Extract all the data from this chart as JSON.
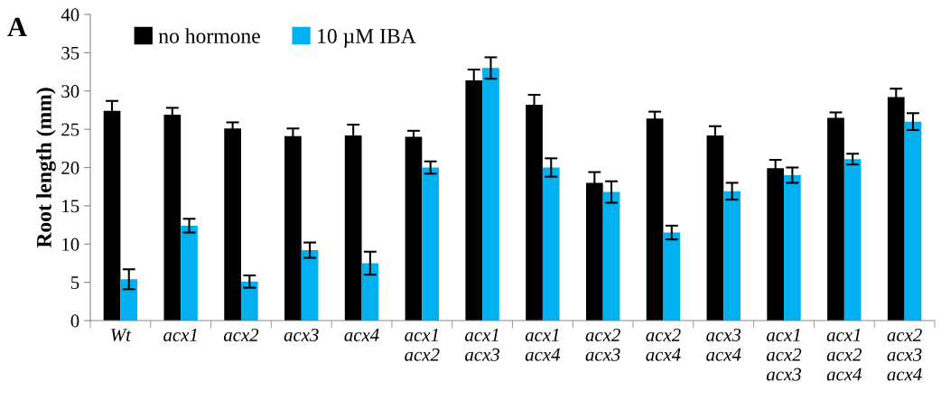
{
  "chart_data": {
    "type": "bar",
    "ylabel": "Root length (mm)",
    "annotations": [
      "A"
    ],
    "categories": [
      "Wt",
      "acx1",
      "acx2",
      "acx3",
      "acx4",
      "acx1\nacx2",
      "acx1\nacx3",
      "acx1\nacx4",
      "acx2\nacx3",
      "acx2\nacx4",
      "acx3\nacx4",
      "acx1\nacx2\nacx3",
      "acx1\nacx2\nacx4",
      "acx2\nacx3\nacx4"
    ],
    "series": [
      {
        "name": "no hormone",
        "color": "#000000",
        "values": [
          27.4,
          26.9,
          25.1,
          24.1,
          24.2,
          24.0,
          31.4,
          28.2,
          18.0,
          26.4,
          24.2,
          19.9,
          26.5,
          29.2
        ],
        "errors": [
          1.3,
          0.9,
          0.8,
          1.0,
          1.4,
          0.8,
          1.4,
          1.3,
          1.4,
          0.9,
          1.2,
          1.1,
          0.7,
          1.1
        ]
      },
      {
        "name": "10 µM IBA",
        "color": "#00b0f0",
        "values": [
          5.4,
          12.4,
          5.1,
          9.2,
          7.5,
          20.0,
          33.0,
          20.0,
          16.8,
          11.5,
          16.9,
          19.0,
          21.1,
          26.0
        ],
        "errors": [
          1.3,
          0.9,
          0.8,
          1.0,
          1.5,
          0.8,
          1.4,
          1.2,
          1.4,
          0.9,
          1.1,
          1.0,
          0.7,
          1.1
        ]
      }
    ],
    "ylim": [
      0,
      40
    ],
    "yticks": [
      0,
      5,
      10,
      15,
      20,
      25,
      30,
      35,
      40
    ],
    "grid": false,
    "legend": "top left"
  }
}
